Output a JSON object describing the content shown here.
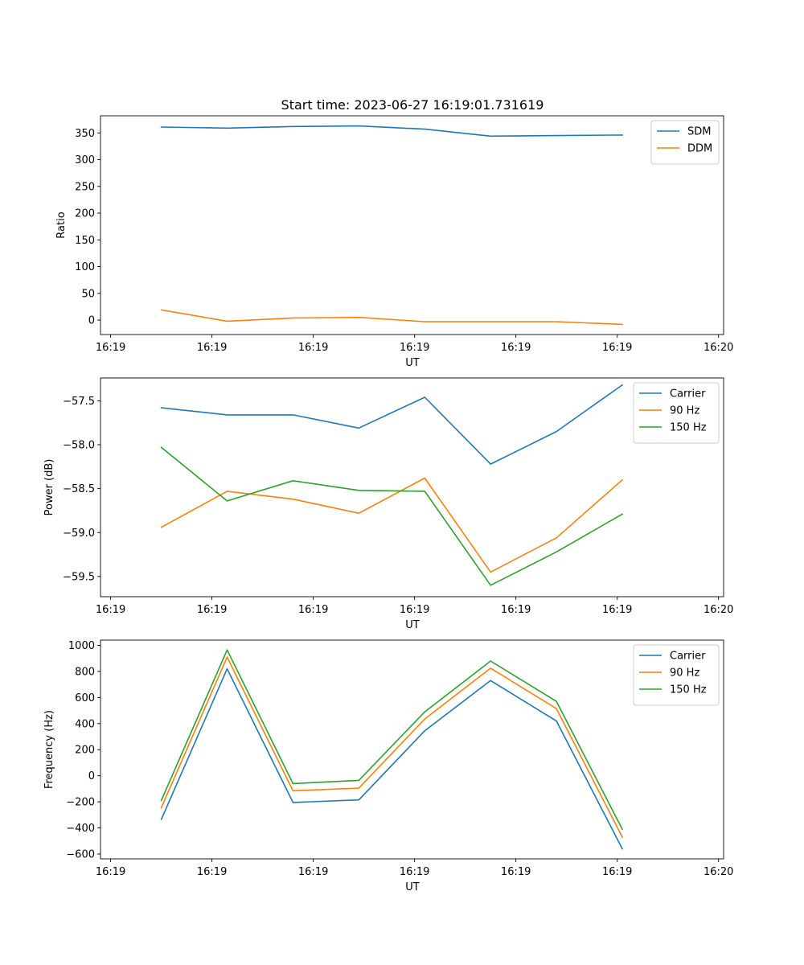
{
  "figure_title": "Start time: 2023-06-27 16:19:01.731619",
  "chart_data": [
    {
      "type": "line",
      "xlabel": "UT",
      "ylabel": "Ratio",
      "xlim": [
        0,
        12.3
      ],
      "ylim": [
        -27,
        382
      ],
      "x_ticks": [
        0.2,
        2.2,
        4.2,
        6.2,
        8.2,
        10.2,
        12.2
      ],
      "x_tick_labels": [
        "16:19",
        "16:19",
        "16:19",
        "16:19",
        "16:19",
        "16:19",
        "16:20"
      ],
      "y_ticks": [
        0,
        50,
        100,
        150,
        200,
        250,
        300,
        350
      ],
      "y_tick_labels": [
        "0",
        "50",
        "100",
        "150",
        "200",
        "250",
        "300",
        "350"
      ],
      "legend_position": "upper right",
      "x": [
        1.2,
        2.5,
        3.8,
        5.1,
        6.4,
        7.7,
        9.0,
        10.3
      ],
      "series": [
        {
          "name": "SDM",
          "color": "#1f77b4",
          "values": [
            361,
            359,
            362,
            363,
            357,
            344,
            345,
            346
          ]
        },
        {
          "name": "DDM",
          "color": "#ff7f0e",
          "values": [
            19,
            -2,
            4,
            5,
            -3,
            -3,
            -3,
            -8
          ]
        }
      ]
    },
    {
      "type": "line",
      "xlabel": "UT",
      "ylabel": "Power (dB)",
      "xlim": [
        0,
        12.3
      ],
      "ylim": [
        -59.73,
        -57.24
      ],
      "x_ticks": [
        0.2,
        2.2,
        4.2,
        6.2,
        8.2,
        10.2,
        12.2
      ],
      "x_tick_labels": [
        "16:19",
        "16:19",
        "16:19",
        "16:19",
        "16:19",
        "16:19",
        "16:20"
      ],
      "y_ticks": [
        -59.5,
        -59.0,
        -58.5,
        -58.0,
        -57.5
      ],
      "y_tick_labels": [
        "−59.5",
        "−59.0",
        "−58.5",
        "−58.0",
        "−57.5"
      ],
      "legend_position": "upper right",
      "x": [
        1.2,
        2.5,
        3.8,
        5.1,
        6.4,
        7.7,
        9.0,
        10.3
      ],
      "series": [
        {
          "name": "Carrier",
          "color": "#1f77b4",
          "values": [
            -57.58,
            -57.66,
            -57.66,
            -57.81,
            -57.46,
            -58.22,
            -57.85,
            -57.32
          ]
        },
        {
          "name": "90 Hz",
          "color": "#ff7f0e",
          "values": [
            -58.94,
            -58.53,
            -58.62,
            -58.78,
            -58.38,
            -59.45,
            -59.06,
            -58.4
          ]
        },
        {
          "name": "150 Hz",
          "color": "#2ca02c",
          "values": [
            -58.03,
            -58.64,
            -58.41,
            -58.52,
            -58.53,
            -59.6,
            -59.22,
            -58.79
          ]
        }
      ]
    },
    {
      "type": "line",
      "xlabel": "UT",
      "ylabel": "Frequency (Hz)",
      "xlim": [
        0,
        12.3
      ],
      "ylim": [
        -637,
        1040
      ],
      "x_ticks": [
        0.2,
        2.2,
        4.2,
        6.2,
        8.2,
        10.2,
        12.2
      ],
      "x_tick_labels": [
        "16:19",
        "16:19",
        "16:19",
        "16:19",
        "16:19",
        "16:19",
        "16:20"
      ],
      "y_ticks": [
        -600,
        -400,
        -200,
        0,
        200,
        400,
        600,
        800,
        1000
      ],
      "y_tick_labels": [
        "−600",
        "−400",
        "−200",
        "0",
        "200",
        "400",
        "600",
        "800",
        "1000"
      ],
      "legend_position": "upper right",
      "x": [
        1.2,
        2.5,
        3.8,
        5.1,
        6.4,
        7.7,
        9.0,
        10.3
      ],
      "series": [
        {
          "name": "Carrier",
          "color": "#1f77b4",
          "values": [
            -335,
            820,
            -205,
            -185,
            345,
            730,
            420,
            -560
          ]
        },
        {
          "name": "90 Hz",
          "color": "#ff7f0e",
          "values": [
            -245,
            910,
            -115,
            -95,
            435,
            825,
            515,
            -470
          ]
        },
        {
          "name": "150 Hz",
          "color": "#2ca02c",
          "values": [
            -190,
            965,
            -60,
            -35,
            490,
            880,
            570,
            -410
          ]
        }
      ]
    }
  ]
}
